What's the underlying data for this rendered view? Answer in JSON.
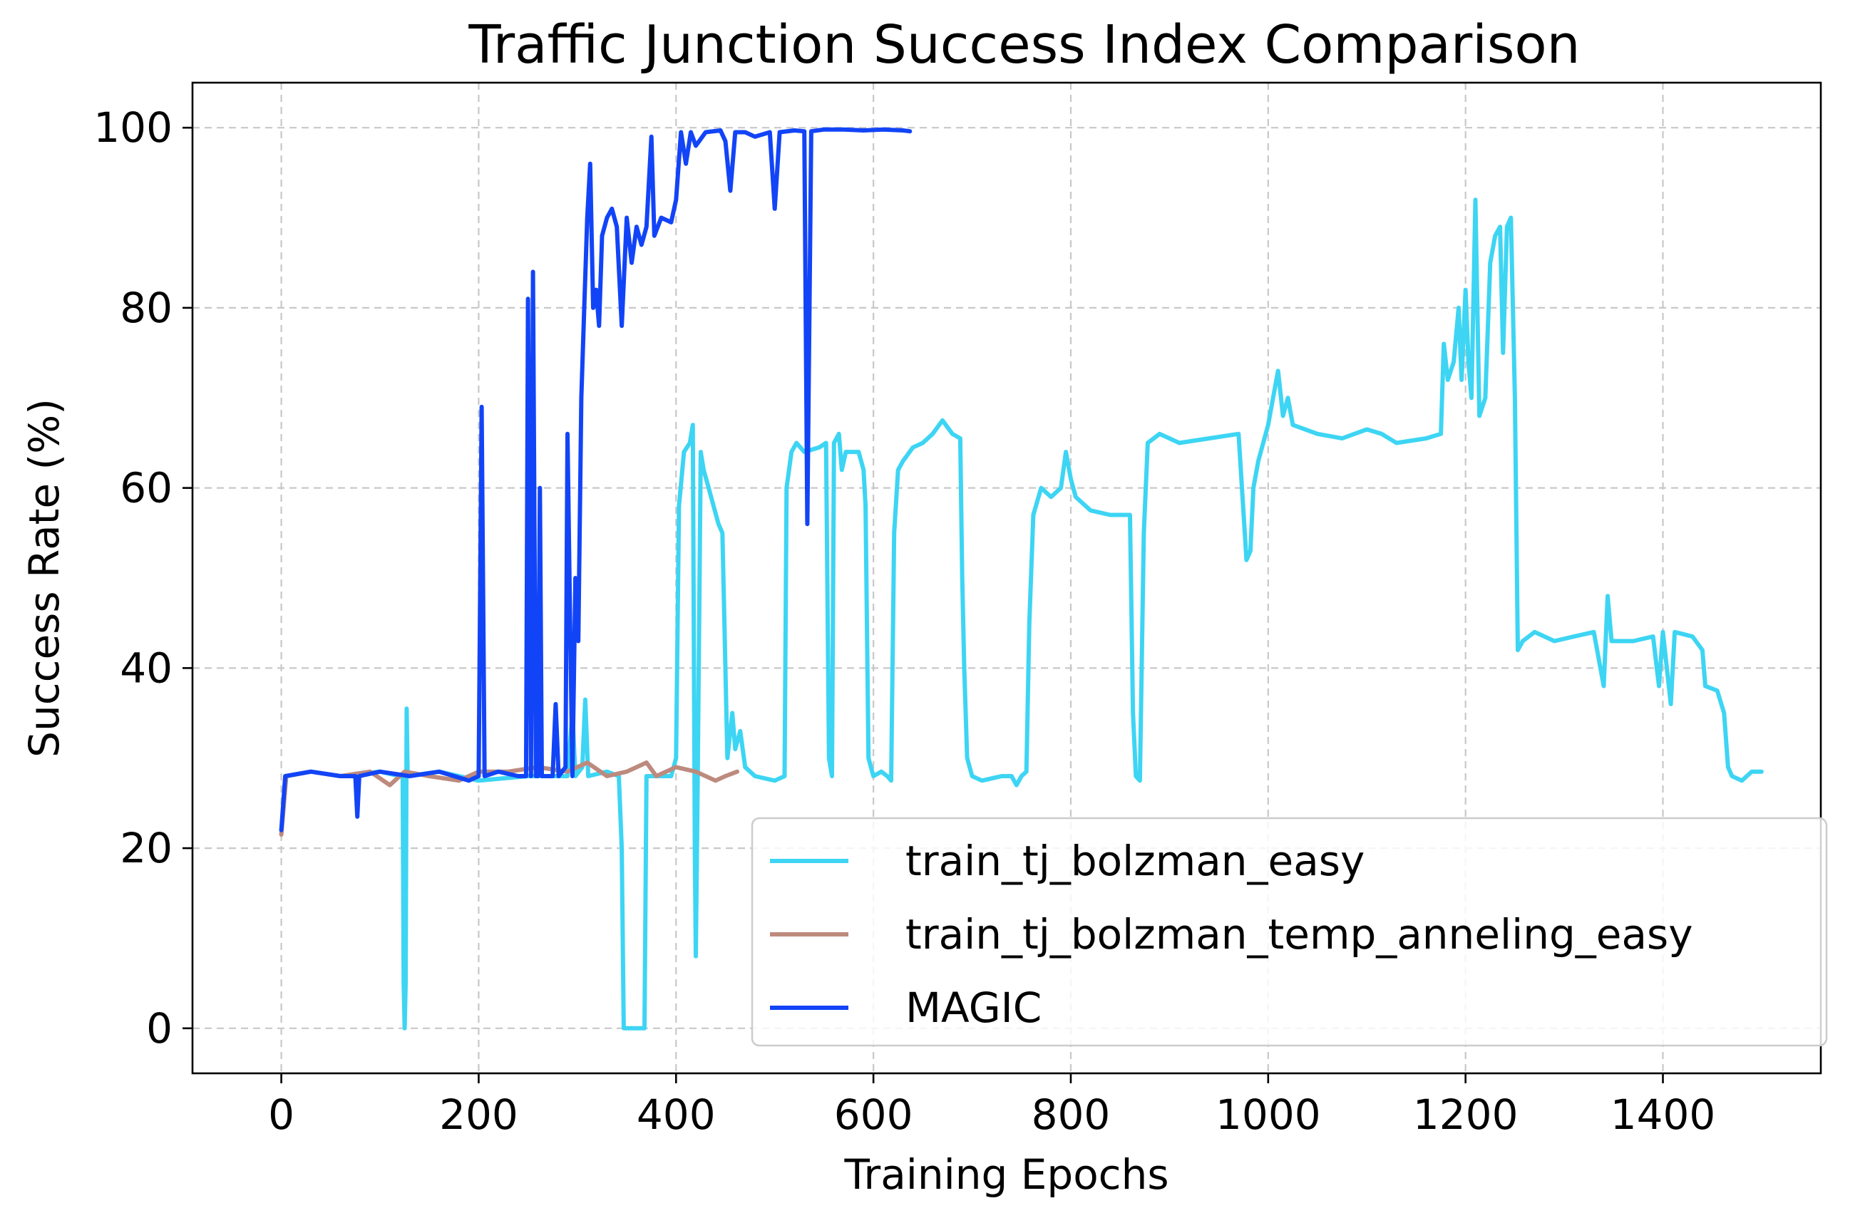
{
  "chart_data": {
    "type": "line",
    "title": "Traffic Junction Success Index Comparison",
    "xlabel": "Training Epochs",
    "ylabel": "Success Rate (%)",
    "xlim": [
      -90,
      1560
    ],
    "ylim": [
      -5,
      105
    ],
    "xticks": [
      0,
      200,
      400,
      600,
      800,
      1000,
      1200,
      1400
    ],
    "yticks": [
      0,
      20,
      40,
      60,
      80,
      100
    ],
    "grid": true,
    "legend_position": "lower-right",
    "series": [
      {
        "name": "train_tj_bolzman_easy",
        "color": "#3dd5f3",
        "points": [
          [
            0,
            22
          ],
          [
            5,
            28
          ],
          [
            30,
            28.5
          ],
          [
            60,
            28
          ],
          [
            100,
            28.5
          ],
          [
            120,
            28
          ],
          [
            123,
            28
          ],
          [
            124,
            5
          ],
          [
            125,
            0
          ],
          [
            126,
            5
          ],
          [
            127,
            35.5
          ],
          [
            128,
            28
          ],
          [
            160,
            28.5
          ],
          [
            200,
            27.5
          ],
          [
            250,
            28
          ],
          [
            290,
            28
          ],
          [
            295,
            35
          ],
          [
            298,
            28
          ],
          [
            305,
            29
          ],
          [
            308,
            36.5
          ],
          [
            311,
            28
          ],
          [
            330,
            28.5
          ],
          [
            342,
            28
          ],
          [
            345,
            20
          ],
          [
            347,
            0
          ],
          [
            368,
            0
          ],
          [
            370,
            28
          ],
          [
            395,
            28
          ],
          [
            400,
            30
          ],
          [
            403,
            58
          ],
          [
            408,
            64
          ],
          [
            414,
            65
          ],
          [
            417,
            67
          ],
          [
            419,
            20
          ],
          [
            420,
            8
          ],
          [
            422,
            28
          ],
          [
            425,
            64
          ],
          [
            428,
            62
          ],
          [
            433,
            60
          ],
          [
            438,
            58
          ],
          [
            443,
            56
          ],
          [
            447,
            55
          ],
          [
            452,
            30
          ],
          [
            457,
            35
          ],
          [
            460,
            31
          ],
          [
            465,
            33
          ],
          [
            470,
            29
          ],
          [
            480,
            28
          ],
          [
            500,
            27.5
          ],
          [
            510,
            28
          ],
          [
            512,
            60
          ],
          [
            517,
            64
          ],
          [
            522,
            65
          ],
          [
            530,
            64
          ],
          [
            545,
            64.5
          ],
          [
            552,
            65
          ],
          [
            555,
            30
          ],
          [
            558,
            28
          ],
          [
            560,
            65
          ],
          [
            565,
            66
          ],
          [
            568,
            62
          ],
          [
            572,
            64
          ],
          [
            585,
            64
          ],
          [
            590,
            62
          ],
          [
            592,
            58
          ],
          [
            595,
            30
          ],
          [
            600,
            28
          ],
          [
            608,
            28.5
          ],
          [
            614,
            28
          ],
          [
            618,
            27.5
          ],
          [
            621,
            55
          ],
          [
            625,
            62
          ],
          [
            630,
            63
          ],
          [
            640,
            64.5
          ],
          [
            650,
            65
          ],
          [
            660,
            66
          ],
          [
            670,
            67.5
          ],
          [
            680,
            66
          ],
          [
            688,
            65.5
          ],
          [
            690,
            50
          ],
          [
            692,
            40
          ],
          [
            695,
            30
          ],
          [
            700,
            28
          ],
          [
            710,
            27.5
          ],
          [
            730,
            28
          ],
          [
            740,
            28
          ],
          [
            745,
            27
          ],
          [
            750,
            28
          ],
          [
            755,
            28.5
          ],
          [
            758,
            45
          ],
          [
            762,
            57
          ],
          [
            770,
            60
          ],
          [
            780,
            59
          ],
          [
            790,
            60
          ],
          [
            795,
            64
          ],
          [
            800,
            61
          ],
          [
            805,
            59
          ],
          [
            820,
            57.5
          ],
          [
            840,
            57
          ],
          [
            860,
            57
          ],
          [
            863,
            35
          ],
          [
            866,
            28
          ],
          [
            870,
            27.5
          ],
          [
            874,
            55
          ],
          [
            878,
            65
          ],
          [
            890,
            66
          ],
          [
            910,
            65
          ],
          [
            940,
            65.5
          ],
          [
            970,
            66
          ],
          [
            978,
            52
          ],
          [
            982,
            53
          ],
          [
            985,
            60
          ],
          [
            990,
            63
          ],
          [
            995,
            65
          ],
          [
            1000,
            67
          ],
          [
            1005,
            70
          ],
          [
            1010,
            73
          ],
          [
            1015,
            68
          ],
          [
            1020,
            70
          ],
          [
            1025,
            67
          ],
          [
            1050,
            66
          ],
          [
            1075,
            65.5
          ],
          [
            1100,
            66.5
          ],
          [
            1115,
            66
          ],
          [
            1130,
            65
          ],
          [
            1160,
            65.5
          ],
          [
            1175,
            66
          ],
          [
            1178,
            76
          ],
          [
            1182,
            72
          ],
          [
            1188,
            74
          ],
          [
            1193,
            80
          ],
          [
            1196,
            72
          ],
          [
            1200,
            82
          ],
          [
            1203,
            74
          ],
          [
            1206,
            70
          ],
          [
            1210,
            92
          ],
          [
            1214,
            68
          ],
          [
            1220,
            70
          ],
          [
            1225,
            85
          ],
          [
            1230,
            88
          ],
          [
            1235,
            89
          ],
          [
            1238,
            75
          ],
          [
            1242,
            89
          ],
          [
            1246,
            90
          ],
          [
            1250,
            70
          ],
          [
            1253,
            42
          ],
          [
            1258,
            43
          ],
          [
            1270,
            44
          ],
          [
            1290,
            43
          ],
          [
            1310,
            43.5
          ],
          [
            1330,
            44
          ],
          [
            1340,
            38
          ],
          [
            1344,
            48
          ],
          [
            1348,
            43
          ],
          [
            1370,
            43
          ],
          [
            1390,
            43.5
          ],
          [
            1396,
            38
          ],
          [
            1400,
            44
          ],
          [
            1408,
            36
          ],
          [
            1412,
            44
          ],
          [
            1430,
            43.5
          ],
          [
            1440,
            42
          ],
          [
            1443,
            38
          ],
          [
            1455,
            37.5
          ],
          [
            1462,
            35
          ],
          [
            1466,
            29
          ],
          [
            1470,
            28
          ],
          [
            1480,
            27.5
          ],
          [
            1490,
            28.5
          ],
          [
            1500,
            28.5
          ]
        ]
      },
      {
        "name": "train_tj_bolzman_temp_anneling_easy",
        "color": "#bd8a7e",
        "points": [
          [
            0,
            21.5
          ],
          [
            5,
            28
          ],
          [
            30,
            28.5
          ],
          [
            60,
            28
          ],
          [
            90,
            28.5
          ],
          [
            110,
            27
          ],
          [
            125,
            28.5
          ],
          [
            150,
            28
          ],
          [
            180,
            27.5
          ],
          [
            200,
            28.5
          ],
          [
            230,
            28.5
          ],
          [
            260,
            29
          ],
          [
            290,
            28.5
          ],
          [
            310,
            29.5
          ],
          [
            330,
            28
          ],
          [
            350,
            28.5
          ],
          [
            370,
            29.5
          ],
          [
            380,
            28
          ],
          [
            400,
            29
          ],
          [
            420,
            28.5
          ],
          [
            440,
            27.5
          ],
          [
            450,
            28
          ],
          [
            462,
            28.5
          ]
        ]
      },
      {
        "name": "MAGIC",
        "color": "#1244f7",
        "points": [
          [
            0,
            22
          ],
          [
            4,
            28
          ],
          [
            30,
            28.5
          ],
          [
            60,
            28
          ],
          [
            75,
            28
          ],
          [
            77,
            23.5
          ],
          [
            79,
            28
          ],
          [
            100,
            28.5
          ],
          [
            130,
            28
          ],
          [
            160,
            28.5
          ],
          [
            190,
            27.5
          ],
          [
            200,
            28
          ],
          [
            203,
            69
          ],
          [
            206,
            28
          ],
          [
            220,
            28.5
          ],
          [
            240,
            28
          ],
          [
            248,
            28
          ],
          [
            250,
            81
          ],
          [
            253,
            28
          ],
          [
            255,
            84
          ],
          [
            258,
            28
          ],
          [
            260,
            28
          ],
          [
            262,
            60
          ],
          [
            264,
            28
          ],
          [
            275,
            28
          ],
          [
            278,
            36
          ],
          [
            281,
            28
          ],
          [
            288,
            29
          ],
          [
            290,
            66
          ],
          [
            292,
            50
          ],
          [
            295,
            28
          ],
          [
            298,
            50
          ],
          [
            301,
            43
          ],
          [
            304,
            70
          ],
          [
            307,
            80
          ],
          [
            310,
            90
          ],
          [
            313,
            96
          ],
          [
            316,
            80
          ],
          [
            319,
            82
          ],
          [
            322,
            78
          ],
          [
            325,
            88
          ],
          [
            330,
            90
          ],
          [
            335,
            91
          ],
          [
            340,
            89
          ],
          [
            345,
            78
          ],
          [
            350,
            90
          ],
          [
            355,
            85
          ],
          [
            360,
            89
          ],
          [
            365,
            87
          ],
          [
            370,
            89
          ],
          [
            375,
            99
          ],
          [
            378,
            88
          ],
          [
            385,
            90
          ],
          [
            395,
            89.5
          ],
          [
            400,
            92
          ],
          [
            405,
            99.5
          ],
          [
            410,
            96
          ],
          [
            415,
            99.5
          ],
          [
            420,
            98
          ],
          [
            430,
            99.5
          ],
          [
            445,
            99.7
          ],
          [
            450,
            98.5
          ],
          [
            455,
            93
          ],
          [
            460,
            99.5
          ],
          [
            470,
            99.5
          ],
          [
            480,
            99
          ],
          [
            495,
            99.5
          ],
          [
            500,
            91
          ],
          [
            505,
            99.5
          ],
          [
            520,
            99.7
          ],
          [
            530,
            99.6
          ],
          [
            533,
            56
          ],
          [
            537,
            99.6
          ],
          [
            550,
            99.8
          ],
          [
            570,
            99.8
          ],
          [
            590,
            99.7
          ],
          [
            610,
            99.8
          ],
          [
            630,
            99.7
          ],
          [
            637,
            99.6
          ]
        ]
      }
    ]
  }
}
